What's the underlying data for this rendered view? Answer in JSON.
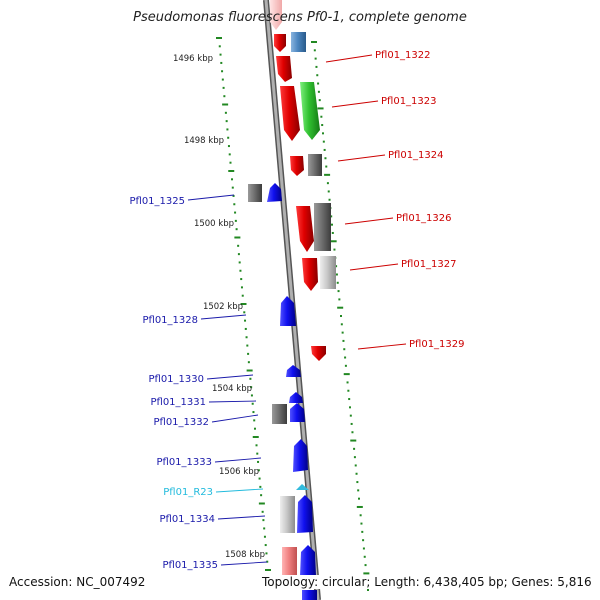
{
  "title": "Pseudomonas fluorescens Pf0-1, complete genome",
  "footer": {
    "accession": "Accession: NC_007492",
    "summary": "Topology: circular; Length: 6,438,405 bp; Genes: 5,816"
  },
  "colors": {
    "backbone": "#888888",
    "tick": "#228822",
    "right_label": "#cc0000",
    "left_label": "#1a1aaa",
    "rna_label": "#22bbdd"
  },
  "scale_labels": [
    {
      "text": "1496 kbp",
      "kbp": 1496
    },
    {
      "text": "1498 kbp",
      "kbp": 1498
    },
    {
      "text": "1500 kbp",
      "kbp": 1500
    },
    {
      "text": "1502 kbp",
      "kbp": 1502
    },
    {
      "text": "1504 kbp",
      "kbp": 1504
    },
    {
      "text": "1506 kbp",
      "kbp": 1506
    },
    {
      "text": "1508 kbp",
      "kbp": 1508
    }
  ],
  "gene_labels": [
    {
      "text": "Pfl01_1322",
      "side": "right"
    },
    {
      "text": "Pfl01_1323",
      "side": "right"
    },
    {
      "text": "Pfl01_1324",
      "side": "right"
    },
    {
      "text": "Pfl01_1325",
      "side": "left"
    },
    {
      "text": "Pfl01_1326",
      "side": "right"
    },
    {
      "text": "Pfl01_1327",
      "side": "right"
    },
    {
      "text": "Pfl01_1328",
      "side": "left"
    },
    {
      "text": "Pfl01_1329",
      "side": "right"
    },
    {
      "text": "Pfl01_1330",
      "side": "left"
    },
    {
      "text": "Pfl01_1331",
      "side": "left"
    },
    {
      "text": "Pfl01_1332",
      "side": "left"
    },
    {
      "text": "Pfl01_1333",
      "side": "left"
    },
    {
      "text": "Pfl01_R23",
      "side": "left",
      "type": "rna"
    },
    {
      "text": "Pfl01_1334",
      "side": "left"
    },
    {
      "text": "Pfl01_1335",
      "side": "left"
    }
  ]
}
